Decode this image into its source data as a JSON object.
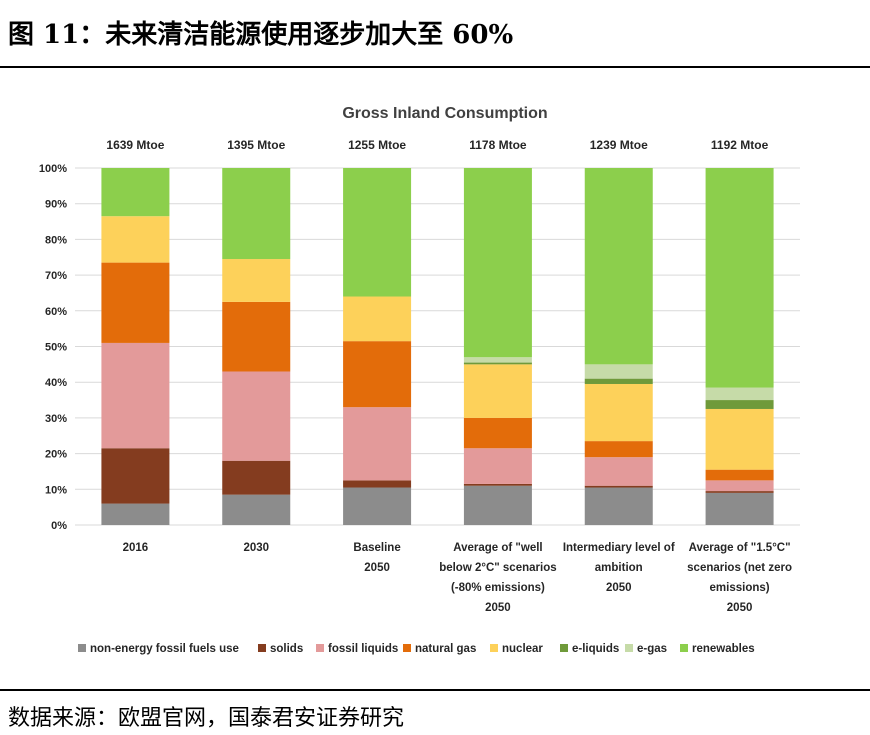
{
  "figure_title": "图  11：未来清洁能源使用逐步加大至 60%",
  "source": "数据来源：欧盟官网，国泰君安证券研究",
  "chart_data": {
    "type": "bar",
    "stacked": true,
    "title": "Gross Inland Consumption",
    "ylim": [
      0,
      100
    ],
    "y_ticks": [
      "0%",
      "10%",
      "20%",
      "30%",
      "40%",
      "50%",
      "60%",
      "70%",
      "80%",
      "90%",
      "100%"
    ],
    "grid": true,
    "legend_position": "bottom",
    "categories": [
      [
        "2016"
      ],
      [
        "2030"
      ],
      [
        "Baseline",
        "2050"
      ],
      [
        "Average of \"well",
        "below 2°C\" scenarios",
        "(-80% emissions)",
        "2050"
      ],
      [
        "Intermediary level of",
        "ambition",
        "2050"
      ],
      [
        "Average of \"1.5°C\"",
        "scenarios (net zero",
        "emissions)",
        "2050"
      ]
    ],
    "totals": [
      "1639 Mtoe",
      "1395 Mtoe",
      "1255 Mtoe",
      "1178 Mtoe",
      "1239 Mtoe",
      "1192 Mtoe"
    ],
    "series": [
      {
        "name": "non-energy fossil fuels use",
        "color": "#8c8c8c",
        "values": [
          6,
          8.5,
          10.5,
          11,
          10.5,
          9
        ]
      },
      {
        "name": "solids",
        "color": "#843c1f",
        "values": [
          15.5,
          9.5,
          2,
          0.5,
          0.5,
          0.5
        ]
      },
      {
        "name": "fossil liquids",
        "color": "#e39a9a",
        "values": [
          29.5,
          25,
          20.5,
          10,
          8,
          3
        ]
      },
      {
        "name": "natural gas",
        "color": "#e36c0a",
        "values": [
          22.5,
          19.5,
          18.5,
          8.5,
          4.5,
          3
        ]
      },
      {
        "name": "nuclear",
        "color": "#fdd15a",
        "values": [
          13,
          12,
          12.5,
          15,
          16,
          17
        ]
      },
      {
        "name": "e-liquids",
        "color": "#6f9a3a",
        "values": [
          0,
          0,
          0,
          0.5,
          1.5,
          2.5
        ]
      },
      {
        "name": "e-gas",
        "color": "#c6dba8",
        "values": [
          0,
          0,
          0,
          1.5,
          4,
          3.5
        ]
      },
      {
        "name": "renewables",
        "color": "#8ccf4c",
        "values": [
          13.5,
          25.5,
          36,
          53,
          55,
          61.5
        ]
      }
    ]
  }
}
